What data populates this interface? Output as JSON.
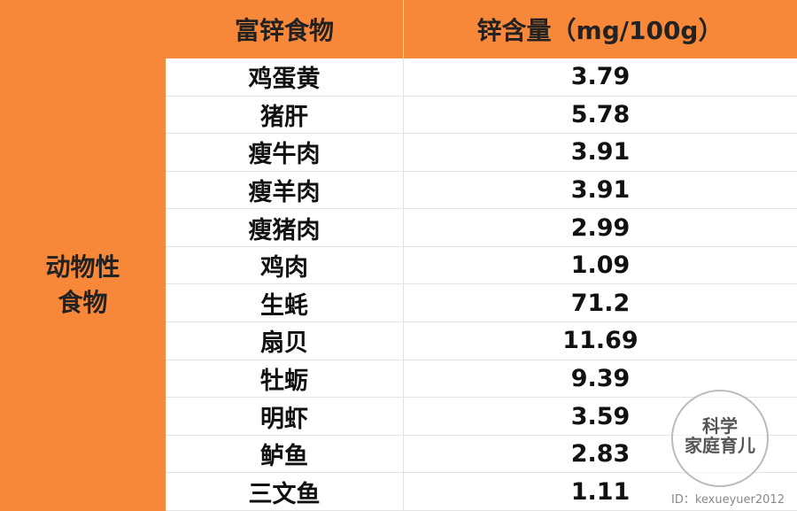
{
  "header": {
    "food": "富锌食物",
    "zinc": "锌含量（mg/100g）"
  },
  "table": {
    "group": "动物性食物",
    "rows": [
      [
        "鸡蛋黄",
        "3.79"
      ],
      [
        "猪肝",
        "5.78"
      ],
      [
        "瘦牛肉",
        "3.91"
      ],
      [
        "瘦羊肉",
        "3.91"
      ],
      [
        "瘦猪肉",
        "2.99"
      ],
      [
        "鸡肉",
        "1.09"
      ],
      [
        "生蚝",
        "71.2"
      ],
      [
        "扇贝",
        "11.69"
      ],
      [
        "牡蛎",
        "9.39"
      ],
      [
        "明虾",
        "3.59"
      ],
      [
        "鲈鱼",
        "2.83"
      ],
      [
        "三文鱼",
        "1.11"
      ]
    ]
  },
  "watermark": {
    "line1": "科学",
    "line2": "家庭育儿",
    "id": "ID：kexueyuer2012"
  }
}
